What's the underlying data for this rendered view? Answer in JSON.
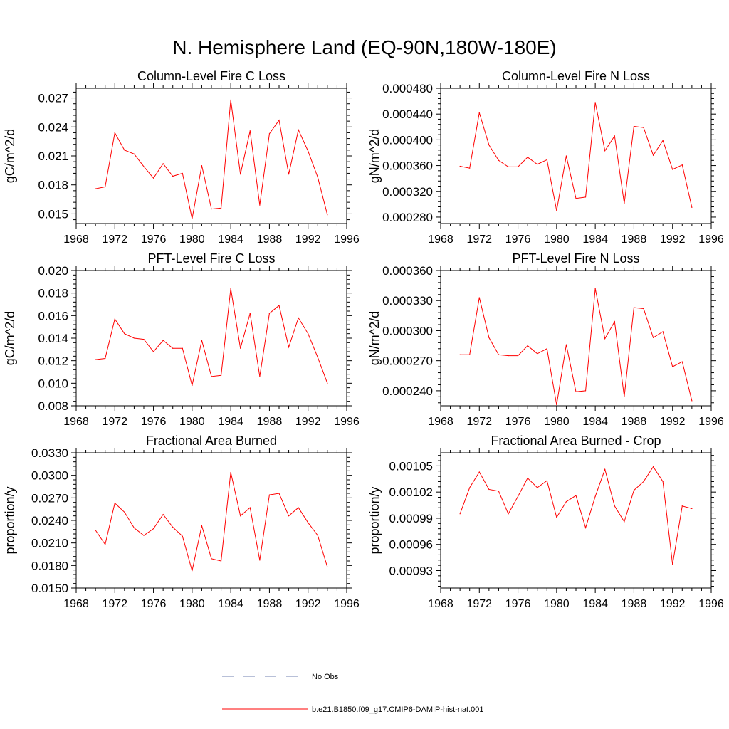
{
  "page": {
    "title": "N. Hemisphere Land (EQ-90N,180W-180E)"
  },
  "legend": [
    {
      "label": "No Obs",
      "color": "#7080b0",
      "style": "dashed"
    },
    {
      "label": "b.e21.B1850.f09_g17.CMIP6-DAMIP-hist-nat.001",
      "color": "#ff0000",
      "style": "solid"
    }
  ],
  "chart_data": [
    {
      "type": "line",
      "title": "Column-Level Fire C Loss",
      "ylabel": "gC/m^2/d",
      "xlim": [
        1968,
        1996
      ],
      "xticks": [
        1968,
        1972,
        1976,
        1980,
        1984,
        1988,
        1992,
        1996
      ],
      "ylim": [
        0.014,
        0.028
      ],
      "yticks": [
        0.015,
        0.018,
        0.021,
        0.024,
        0.027
      ],
      "ytick_labels": [
        "0.015",
        "0.018",
        "0.021",
        "0.024",
        "0.027"
      ],
      "series": [
        {
          "color": "#ff0000",
          "x": [
            1970,
            1971,
            1972,
            1973,
            1974,
            1975,
            1976,
            1977,
            1978,
            1979,
            1980,
            1981,
            1982,
            1983,
            1984,
            1985,
            1986,
            1987,
            1988,
            1989,
            1990,
            1991,
            1992,
            1993,
            1994
          ],
          "y": [
            0.0176,
            0.0178,
            0.0234,
            0.0216,
            0.0212,
            0.0199,
            0.0187,
            0.0202,
            0.0189,
            0.0192,
            0.0145,
            0.02,
            0.0155,
            0.0156,
            0.0268,
            0.0191,
            0.0236,
            0.0159,
            0.0233,
            0.0247,
            0.0191,
            0.0237,
            0.0215,
            0.0188,
            0.0149
          ]
        }
      ]
    },
    {
      "type": "line",
      "title": "Column-Level Fire N Loss",
      "ylabel": "gN/m^2/d",
      "xlim": [
        1968,
        1996
      ],
      "xticks": [
        1968,
        1972,
        1976,
        1980,
        1984,
        1988,
        1992,
        1996
      ],
      "ylim": [
        0.00027,
        0.00048
      ],
      "yticks": [
        0.00028,
        0.00032,
        0.00036,
        0.0004,
        0.00044,
        0.00048
      ],
      "ytick_labels": [
        "0.000280",
        "0.000320",
        "0.000360",
        "0.000400",
        "0.000440",
        "0.000480"
      ],
      "series": [
        {
          "color": "#ff0000",
          "x": [
            1970,
            1971,
            1972,
            1973,
            1974,
            1975,
            1976,
            1977,
            1978,
            1979,
            1980,
            1981,
            1982,
            1983,
            1984,
            1985,
            1986,
            1987,
            1988,
            1989,
            1990,
            1991,
            1992,
            1993,
            1994
          ],
          "y": [
            0.000359,
            0.000356,
            0.000442,
            0.000392,
            0.000368,
            0.000358,
            0.000358,
            0.000373,
            0.000362,
            0.000369,
            0.00029,
            0.000375,
            0.000309,
            0.000311,
            0.000458,
            0.000383,
            0.000406,
            0.000301,
            0.000421,
            0.000419,
            0.000376,
            0.000399,
            0.000354,
            0.000361,
            0.000295
          ]
        }
      ]
    },
    {
      "type": "line",
      "title": "PFT-Level Fire C Loss",
      "ylabel": "gC/m^2/d",
      "xlim": [
        1968,
        1996
      ],
      "xticks": [
        1968,
        1972,
        1976,
        1980,
        1984,
        1988,
        1992,
        1996
      ],
      "ylim": [
        0.008,
        0.02
      ],
      "yticks": [
        0.008,
        0.01,
        0.012,
        0.014,
        0.016,
        0.018,
        0.02
      ],
      "ytick_labels": [
        "0.008",
        "0.010",
        "0.012",
        "0.014",
        "0.016",
        "0.018",
        "0.020"
      ],
      "series": [
        {
          "color": "#ff0000",
          "x": [
            1970,
            1971,
            1972,
            1973,
            1974,
            1975,
            1976,
            1977,
            1978,
            1979,
            1980,
            1981,
            1982,
            1983,
            1984,
            1985,
            1986,
            1987,
            1988,
            1989,
            1990,
            1991,
            1992,
            1993,
            1994
          ],
          "y": [
            0.0121,
            0.0122,
            0.0157,
            0.0144,
            0.014,
            0.0139,
            0.0128,
            0.0138,
            0.0131,
            0.0131,
            0.0098,
            0.0138,
            0.0106,
            0.0107,
            0.0184,
            0.0131,
            0.0162,
            0.0106,
            0.0162,
            0.0169,
            0.0132,
            0.0158,
            0.0144,
            0.0123,
            0.01
          ]
        }
      ]
    },
    {
      "type": "line",
      "title": "PFT-Level Fire N Loss",
      "ylabel": "gN/m^2/d",
      "xlim": [
        1968,
        1996
      ],
      "xticks": [
        1968,
        1972,
        1976,
        1980,
        1984,
        1988,
        1992,
        1996
      ],
      "ylim": [
        0.000225,
        0.00036
      ],
      "yticks": [
        0.00024,
        0.00027,
        0.0003,
        0.00033,
        0.00036
      ],
      "ytick_labels": [
        "0.000240",
        "0.000270",
        "0.000300",
        "0.000330",
        "0.000360"
      ],
      "series": [
        {
          "color": "#ff0000",
          "x": [
            1970,
            1971,
            1972,
            1973,
            1974,
            1975,
            1976,
            1977,
            1978,
            1979,
            1980,
            1981,
            1982,
            1983,
            1984,
            1985,
            1986,
            1987,
            1988,
            1989,
            1990,
            1991,
            1992,
            1993,
            1994
          ],
          "y": [
            0.000276,
            0.000276,
            0.000333,
            0.000293,
            0.000276,
            0.000275,
            0.000275,
            0.000285,
            0.000277,
            0.000282,
            0.000226,
            0.000286,
            0.000239,
            0.00024,
            0.000342,
            0.000292,
            0.000309,
            0.000234,
            0.000323,
            0.000322,
            0.000293,
            0.000299,
            0.000264,
            0.000269,
            0.00023
          ]
        }
      ]
    },
    {
      "type": "line",
      "title": "Fractional Area Burned",
      "ylabel": "proportion/y",
      "xlim": [
        1968,
        1996
      ],
      "xticks": [
        1968,
        1972,
        1976,
        1980,
        1984,
        1988,
        1992,
        1996
      ],
      "ylim": [
        0.015,
        0.033
      ],
      "yticks": [
        0.015,
        0.018,
        0.021,
        0.024,
        0.027,
        0.03,
        0.033
      ],
      "ytick_labels": [
        "0.0150",
        "0.0180",
        "0.0210",
        "0.0240",
        "0.0270",
        "0.0300",
        "0.0330"
      ],
      "series": [
        {
          "color": "#ff0000",
          "x": [
            1970,
            1971,
            1972,
            1973,
            1974,
            1975,
            1976,
            1977,
            1978,
            1979,
            1980,
            1981,
            1982,
            1983,
            1984,
            1985,
            1986,
            1987,
            1988,
            1989,
            1990,
            1991,
            1992,
            1993,
            1994
          ],
          "y": [
            0.0227,
            0.0208,
            0.0263,
            0.0251,
            0.023,
            0.022,
            0.0229,
            0.0248,
            0.0231,
            0.0219,
            0.0173,
            0.0233,
            0.0189,
            0.0186,
            0.0304,
            0.0246,
            0.0257,
            0.0187,
            0.0274,
            0.0276,
            0.0246,
            0.0257,
            0.0237,
            0.022,
            0.0178
          ]
        }
      ]
    },
    {
      "type": "line",
      "title": "Fractional Area Burned - Crop",
      "ylabel": "proportion/y",
      "xlim": [
        1968,
        1996
      ],
      "xticks": [
        1968,
        1972,
        1976,
        1980,
        1984,
        1988,
        1992,
        1996
      ],
      "ylim": [
        0.00091,
        0.001065
      ],
      "yticks": [
        0.00093,
        0.00096,
        0.00099,
        0.00102,
        0.00105
      ],
      "ytick_labels": [
        "0.00093",
        "0.00096",
        "0.00099",
        "0.00102",
        "0.00105"
      ],
      "series": [
        {
          "color": "#ff0000",
          "x": [
            1970,
            1971,
            1972,
            1973,
            1974,
            1975,
            1976,
            1977,
            1978,
            1979,
            1980,
            1981,
            1982,
            1983,
            1984,
            1985,
            1986,
            1987,
            1988,
            1989,
            1990,
            1991,
            1992,
            1993,
            1994
          ],
          "y": [
            0.000995,
            0.001025,
            0.001043,
            0.001023,
            0.001021,
            0.000995,
            0.001015,
            0.001036,
            0.001025,
            0.001033,
            0.000991,
            0.001009,
            0.001016,
            0.000979,
            0.001015,
            0.001046,
            0.001004,
            0.000986,
            0.001022,
            0.001032,
            0.001049,
            0.001032,
            0.000937,
            0.001004,
            0.001001
          ]
        }
      ]
    }
  ]
}
